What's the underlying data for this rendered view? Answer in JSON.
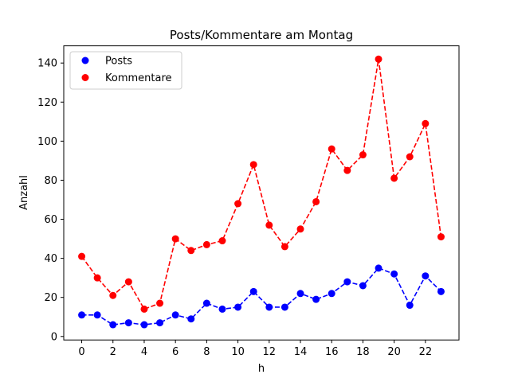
{
  "chart_data": {
    "type": "line",
    "title": "Posts/Kommentare am Montag",
    "xlabel": "h",
    "ylabel": "Anzahl",
    "x": [
      0,
      1,
      2,
      3,
      4,
      5,
      6,
      7,
      8,
      9,
      10,
      11,
      12,
      13,
      14,
      15,
      16,
      17,
      18,
      19,
      20,
      21,
      22,
      23
    ],
    "xlim": [
      -1.15,
      24.15
    ],
    "ylim": [
      -1.8,
      148.8
    ],
    "xticks": [
      0,
      2,
      4,
      6,
      8,
      10,
      12,
      14,
      16,
      18,
      20,
      22
    ],
    "yticks": [
      0,
      20,
      40,
      60,
      80,
      100,
      120,
      140
    ],
    "grid": false,
    "legend_position": "top-left",
    "series": [
      {
        "name": "Posts",
        "color": "#0000ff",
        "linestyle": "dashed",
        "marker": "circle",
        "values": [
          11,
          11,
          6,
          7,
          6,
          7,
          11,
          9,
          17,
          14,
          15,
          23,
          15,
          15,
          22,
          19,
          22,
          28,
          26,
          35,
          32,
          16,
          31,
          23
        ]
      },
      {
        "name": "Kommentare",
        "color": "#ff0000",
        "linestyle": "dashed",
        "marker": "circle",
        "values": [
          41,
          30,
          21,
          28,
          14,
          17,
          50,
          44,
          47,
          49,
          68,
          88,
          57,
          46,
          55,
          69,
          96,
          85,
          93,
          142,
          81,
          92,
          109,
          51
        ]
      }
    ]
  }
}
